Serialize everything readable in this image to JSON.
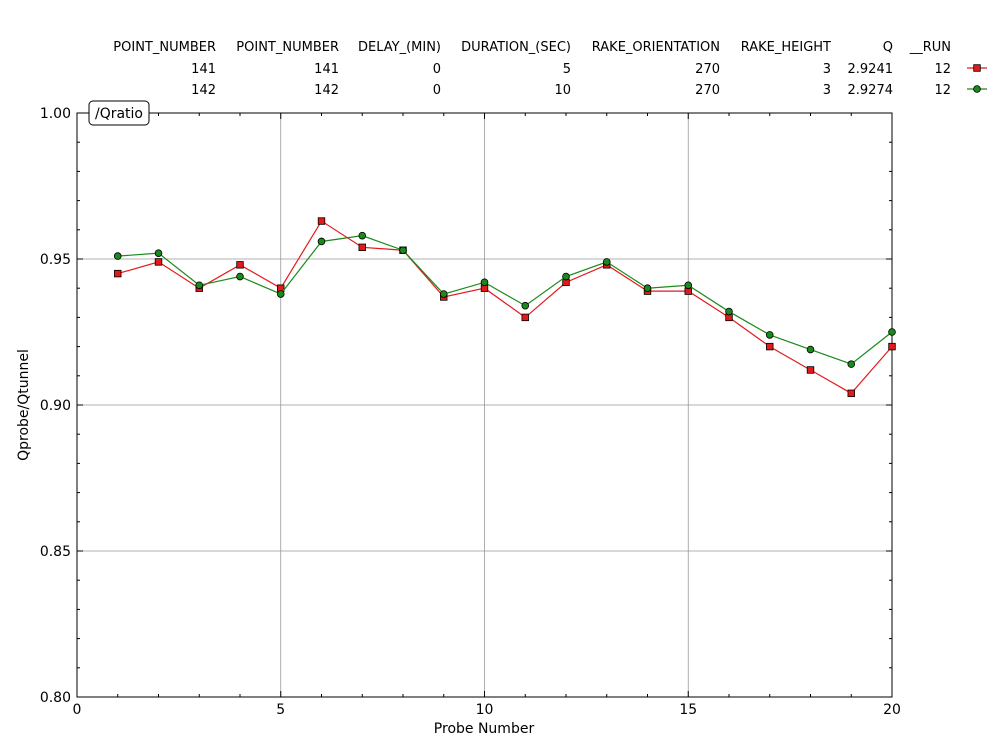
{
  "chart_data": {
    "type": "line",
    "title": "/Qratio",
    "xlabel": "Probe Number",
    "ylabel": "Qprobe/Qtunnel",
    "xlim": [
      0,
      20
    ],
    "ylim": [
      0.8,
      1.0
    ],
    "xticks": [
      0,
      5,
      10,
      15,
      20
    ],
    "xtick_labels": [
      "0",
      "5",
      "10",
      "15",
      "20"
    ],
    "yticks": [
      0.8,
      0.85,
      0.9,
      0.95,
      1.0
    ],
    "ytick_labels": [
      "0.80",
      "0.85",
      "0.90",
      "0.95",
      "1.00"
    ],
    "grid": true,
    "legend_table": {
      "headers": [
        "POINT_NUMBER",
        "POINT_NUMBER",
        "DELAY_(MIN)",
        "DURATION_(SEC)",
        "RAKE_ORIENTATION",
        "RAKE_HEIGHT",
        "Q",
        "__RUN"
      ],
      "rows": [
        [
          "141",
          "141",
          "0",
          "5",
          "270",
          "3",
          "2.9241",
          "12"
        ],
        [
          "142",
          "142",
          "0",
          "10",
          "270",
          "3",
          "2.9274",
          "12"
        ]
      ]
    },
    "series": [
      {
        "color": "#e31a1c",
        "marker": "square",
        "x": [
          1,
          2,
          3,
          4,
          5,
          6,
          7,
          8,
          9,
          10,
          11,
          12,
          13,
          14,
          15,
          16,
          17,
          18,
          19,
          20
        ],
        "values": [
          0.945,
          0.949,
          0.94,
          0.948,
          0.94,
          0.963,
          0.954,
          0.953,
          0.937,
          0.94,
          0.93,
          0.942,
          0.948,
          0.939,
          0.939,
          0.93,
          0.92,
          0.912,
          0.904,
          0.92
        ]
      },
      {
        "color": "#1a8a1a",
        "marker": "circle",
        "x": [
          1,
          2,
          3,
          4,
          5,
          6,
          7,
          8,
          9,
          10,
          11,
          12,
          13,
          14,
          15,
          16,
          17,
          18,
          19,
          20
        ],
        "values": [
          0.951,
          0.952,
          0.941,
          0.944,
          0.938,
          0.956,
          0.958,
          0.953,
          0.938,
          0.942,
          0.934,
          0.944,
          0.949,
          0.94,
          0.941,
          0.932,
          0.924,
          0.919,
          0.914,
          0.925
        ]
      }
    ]
  }
}
